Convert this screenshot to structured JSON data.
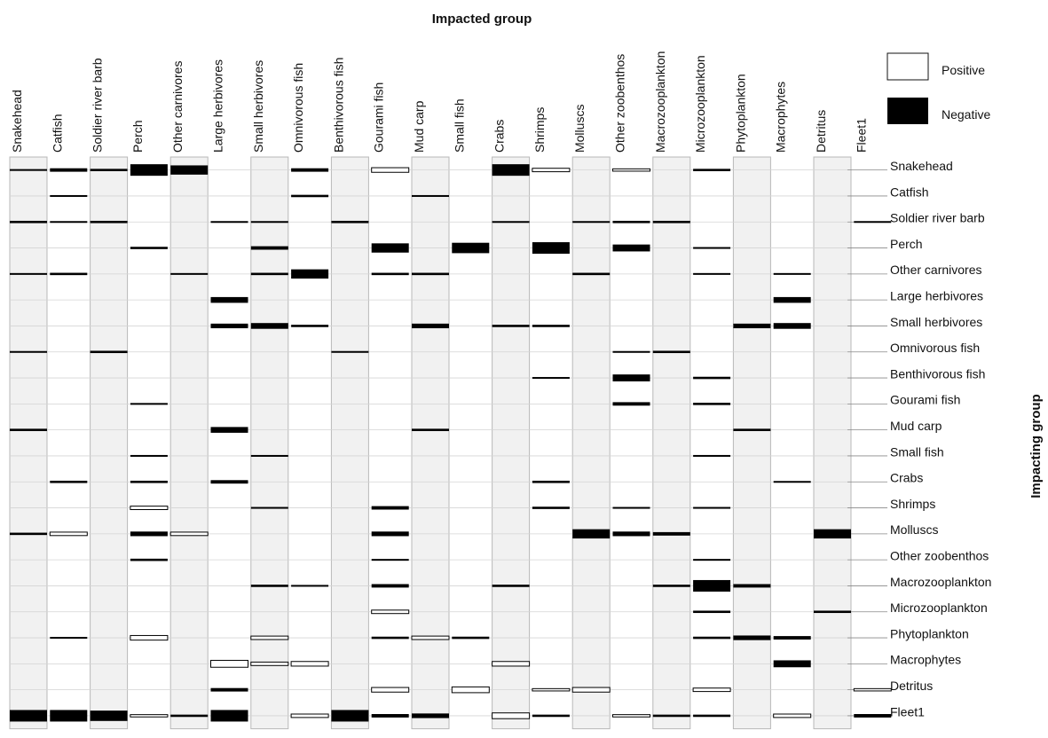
{
  "chart_data": {
    "type": "heatmap",
    "title": "Impacted group",
    "xlabel": "Impacted group",
    "ylabel": "Impacting group",
    "columns": [
      "Snakehead",
      "Catfish",
      "Soldier river barb",
      "Perch",
      "Other carnivores",
      "Large herbivores",
      "Small herbivores",
      "Omnivorous fish",
      "Benthivorous fish",
      "Gourami fish",
      "Mud carp",
      "Small fish",
      "Crabs",
      "Shrimps",
      "Molluscs",
      "Other zoobenthos",
      "Macrozooplankton",
      "Microzooplankton",
      "Phytoplankton",
      "Macrophytes",
      "Detritus",
      "Fleet1"
    ],
    "rows": [
      "Snakehead",
      "Catfish",
      "Soldier river barb",
      "Perch",
      "Other carnivores",
      "Large herbivores",
      "Small herbivores",
      "Omnivorous fish",
      "Benthivorous fish",
      "Gourami fish",
      "Mud carp",
      "Small fish",
      "Crabs",
      "Shrimps",
      "Molluscs",
      "Other zoobenthos",
      "Macrozooplankton",
      "Microzooplankton",
      "Phytoplankton",
      "Macrophytes",
      "Detritus",
      "Fleet1"
    ],
    "legend": {
      "position": "top-right",
      "positive": "Positive",
      "negative": "Negative"
    },
    "shaded_columns": [
      0,
      2,
      4,
      6,
      8,
      10,
      12,
      14,
      16,
      18,
      20
    ],
    "impacts": [
      [
        0,
        0,
        -0.1
      ],
      [
        0,
        1,
        -0.3
      ],
      [
        0,
        2,
        -0.2
      ],
      [
        0,
        3,
        -1
      ],
      [
        0,
        4,
        -0.8
      ],
      [
        0,
        7,
        -0.3
      ],
      [
        0,
        9,
        0.4
      ],
      [
        0,
        12,
        -1
      ],
      [
        0,
        13,
        0.3
      ],
      [
        0,
        15,
        0.2
      ],
      [
        0,
        17,
        -0.2
      ],
      [
        1,
        1,
        -0.1
      ],
      [
        1,
        7,
        -0.2
      ],
      [
        1,
        10,
        -0.1
      ],
      [
        2,
        0,
        -0.2
      ],
      [
        2,
        1,
        -0.1
      ],
      [
        2,
        2,
        -0.2
      ],
      [
        2,
        5,
        -0.1
      ],
      [
        2,
        6,
        -0.1
      ],
      [
        2,
        8,
        -0.2
      ],
      [
        2,
        12,
        -0.1
      ],
      [
        2,
        14,
        -0.1
      ],
      [
        2,
        15,
        -0.2
      ],
      [
        2,
        16,
        -0.2
      ],
      [
        2,
        21,
        -0.1
      ],
      [
        3,
        3,
        -0.2
      ],
      [
        3,
        6,
        -0.3
      ],
      [
        3,
        9,
        -0.8
      ],
      [
        3,
        11,
        -0.9
      ],
      [
        3,
        13,
        -1
      ],
      [
        3,
        15,
        -0.6
      ],
      [
        3,
        17,
        -0.1
      ],
      [
        4,
        0,
        -0.1
      ],
      [
        4,
        1,
        -0.2
      ],
      [
        4,
        4,
        -0.1
      ],
      [
        4,
        6,
        -0.2
      ],
      [
        4,
        7,
        -0.8
      ],
      [
        4,
        9,
        -0.2
      ],
      [
        4,
        10,
        -0.2
      ],
      [
        4,
        14,
        -0.2
      ],
      [
        4,
        17,
        -0.1
      ],
      [
        4,
        19,
        -0.1
      ],
      [
        5,
        5,
        -0.5
      ],
      [
        5,
        19,
        -0.5
      ],
      [
        6,
        5,
        -0.4
      ],
      [
        6,
        6,
        -0.5
      ],
      [
        6,
        7,
        -0.2
      ],
      [
        6,
        10,
        -0.4
      ],
      [
        6,
        12,
        -0.2
      ],
      [
        6,
        13,
        -0.2
      ],
      [
        6,
        18,
        -0.4
      ],
      [
        6,
        19,
        -0.5
      ],
      [
        7,
        0,
        -0.1
      ],
      [
        7,
        2,
        -0.2
      ],
      [
        7,
        8,
        -0.1
      ],
      [
        7,
        15,
        -0.1
      ],
      [
        7,
        16,
        -0.2
      ],
      [
        8,
        13,
        -0.1
      ],
      [
        8,
        15,
        -0.6
      ],
      [
        8,
        17,
        -0.2
      ],
      [
        9,
        3,
        -0.1
      ],
      [
        9,
        15,
        -0.3
      ],
      [
        9,
        17,
        -0.2
      ],
      [
        10,
        0,
        -0.2
      ],
      [
        10,
        5,
        -0.5
      ],
      [
        10,
        10,
        -0.2
      ],
      [
        10,
        18,
        -0.2
      ],
      [
        11,
        3,
        -0.1
      ],
      [
        11,
        6,
        -0.1
      ],
      [
        11,
        17,
        -0.1
      ],
      [
        12,
        1,
        -0.2
      ],
      [
        12,
        3,
        -0.2
      ],
      [
        12,
        5,
        -0.3
      ],
      [
        12,
        13,
        -0.2
      ],
      [
        12,
        19,
        -0.1
      ],
      [
        13,
        3,
        0.3
      ],
      [
        13,
        6,
        -0.1
      ],
      [
        13,
        9,
        -0.3
      ],
      [
        13,
        13,
        -0.2
      ],
      [
        13,
        15,
        -0.1
      ],
      [
        13,
        17,
        -0.1
      ],
      [
        14,
        0,
        -0.2
      ],
      [
        14,
        1,
        0.3
      ],
      [
        14,
        3,
        -0.4
      ],
      [
        14,
        4,
        0.3
      ],
      [
        14,
        9,
        -0.4
      ],
      [
        14,
        14,
        -0.8
      ],
      [
        14,
        15,
        -0.4
      ],
      [
        14,
        16,
        -0.3
      ],
      [
        14,
        20,
        -0.8
      ],
      [
        15,
        3,
        -0.2
      ],
      [
        15,
        9,
        -0.1
      ],
      [
        15,
        17,
        -0.1
      ],
      [
        16,
        6,
        -0.2
      ],
      [
        16,
        7,
        -0.1
      ],
      [
        16,
        9,
        -0.3
      ],
      [
        16,
        12,
        -0.2
      ],
      [
        16,
        16,
        -0.2
      ],
      [
        16,
        17,
        -1
      ],
      [
        16,
        18,
        -0.3
      ],
      [
        17,
        9,
        0.3
      ],
      [
        17,
        17,
        -0.2
      ],
      [
        17,
        20,
        -0.2
      ],
      [
        18,
        1,
        -0.1
      ],
      [
        18,
        3,
        0.4
      ],
      [
        18,
        6,
        0.3
      ],
      [
        18,
        9,
        -0.2
      ],
      [
        18,
        10,
        0.3
      ],
      [
        18,
        11,
        -0.2
      ],
      [
        18,
        17,
        -0.2
      ],
      [
        18,
        18,
        -0.4
      ],
      [
        18,
        19,
        -0.3
      ],
      [
        19,
        5,
        0.6
      ],
      [
        19,
        6,
        0.3
      ],
      [
        19,
        7,
        0.4
      ],
      [
        19,
        12,
        0.4
      ],
      [
        19,
        19,
        -0.6
      ],
      [
        20,
        5,
        -0.3
      ],
      [
        20,
        9,
        0.4
      ],
      [
        20,
        11,
        0.5
      ],
      [
        20,
        13,
        0.2
      ],
      [
        20,
        14,
        0.4
      ],
      [
        20,
        17,
        0.3
      ],
      [
        20,
        21,
        0.2
      ],
      [
        21,
        0,
        -1
      ],
      [
        21,
        1,
        -1
      ],
      [
        21,
        2,
        -0.9
      ],
      [
        21,
        3,
        0.2
      ],
      [
        21,
        4,
        -0.2
      ],
      [
        21,
        5,
        -1
      ],
      [
        21,
        7,
        0.3
      ],
      [
        21,
        8,
        -1
      ],
      [
        21,
        9,
        -0.3
      ],
      [
        21,
        10,
        -0.4
      ],
      [
        21,
        12,
        0.5
      ],
      [
        21,
        13,
        -0.2
      ],
      [
        21,
        15,
        0.2
      ],
      [
        21,
        16,
        -0.2
      ],
      [
        21,
        17,
        -0.2
      ],
      [
        21,
        19,
        0.3
      ],
      [
        21,
        21,
        -0.3
      ]
    ]
  }
}
